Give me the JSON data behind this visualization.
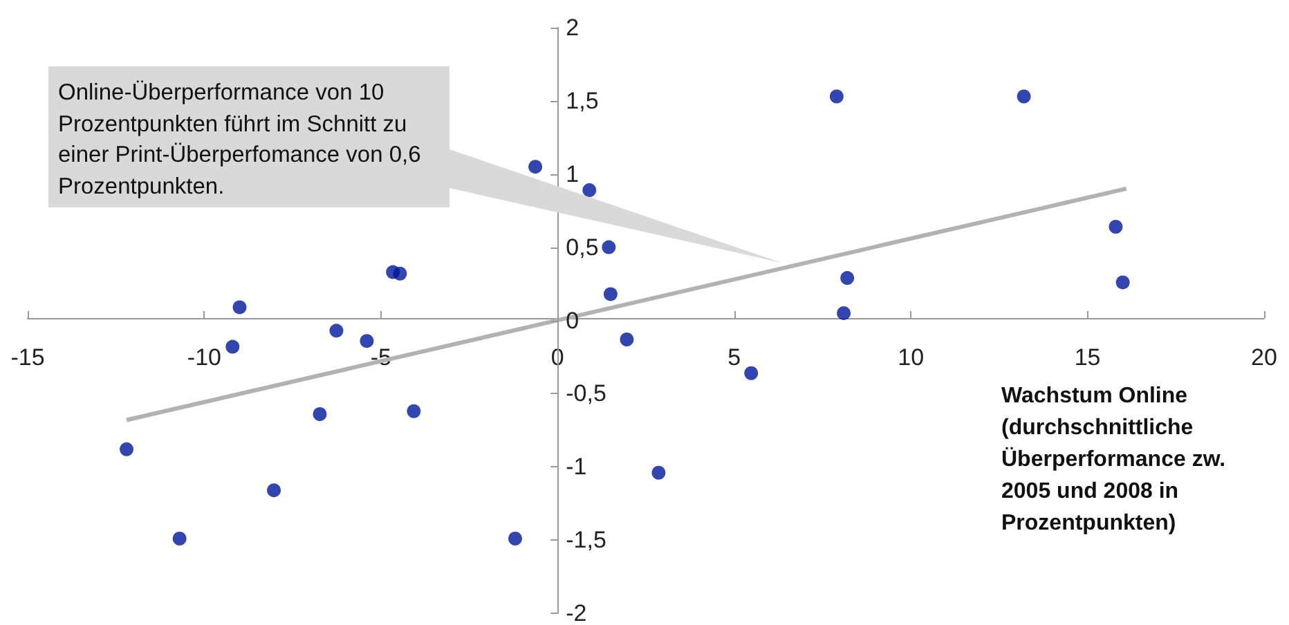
{
  "chart_data": {
    "type": "scatter",
    "xlabel": "Wachstum Online (durchschnittliche Überperformance zw. 2005 und 2008 in Prozentpunkten)",
    "x": [
      -0.63,
      0.9,
      7.9,
      13.2,
      15.8,
      16.0,
      1.45,
      8.2,
      1.5,
      8.1,
      -4.66,
      -4.46,
      -9.0,
      -9.2,
      -6.26,
      -5.4,
      1.96,
      5.48,
      -6.73,
      -4.07,
      -12.2,
      -8.03,
      2.86,
      -10.7,
      -1.2
    ],
    "series": [
      {
        "color": "#00169b",
        "values": [
          1.05,
          0.89,
          1.53,
          1.53,
          0.64,
          0.26,
          0.5,
          0.29,
          0.18,
          0.05,
          0.33,
          0.32,
          0.09,
          -0.18,
          -0.07,
          -0.14,
          -0.13,
          -0.36,
          -0.64,
          -0.62,
          -0.88,
          -1.16,
          -1.04,
          -1.49,
          -1.49
        ]
      },
      {
        "type": "line",
        "marker": "none",
        "color": "#b2b2b2",
        "x": [
          -12.2,
          16.1
        ],
        "values": [
          -0.68,
          0.9
        ]
      }
    ],
    "annotations": [
      "Online-Überperformance von 10 Prozentpunkten führt im Schnitt zu einer Print-Überperfomance von 0,6 Prozentpunkten."
    ],
    "xlim": [
      -15,
      20
    ],
    "xticks": [
      -15,
      -10,
      -5,
      0,
      5,
      10,
      15,
      20
    ],
    "ylim": [
      -2,
      2
    ],
    "yticks": [
      -2,
      {
        "value": -1.5,
        "label": "-1,5"
      },
      -1,
      {
        "value": -0.5,
        "label": "-0,5"
      },
      0,
      {
        "value": 0.5,
        "label": "0,5"
      },
      1,
      {
        "value": 1.5,
        "label": "1,5"
      },
      2
    ],
    "grid": false,
    "marker": "circle",
    "line_style": "solid"
  }
}
